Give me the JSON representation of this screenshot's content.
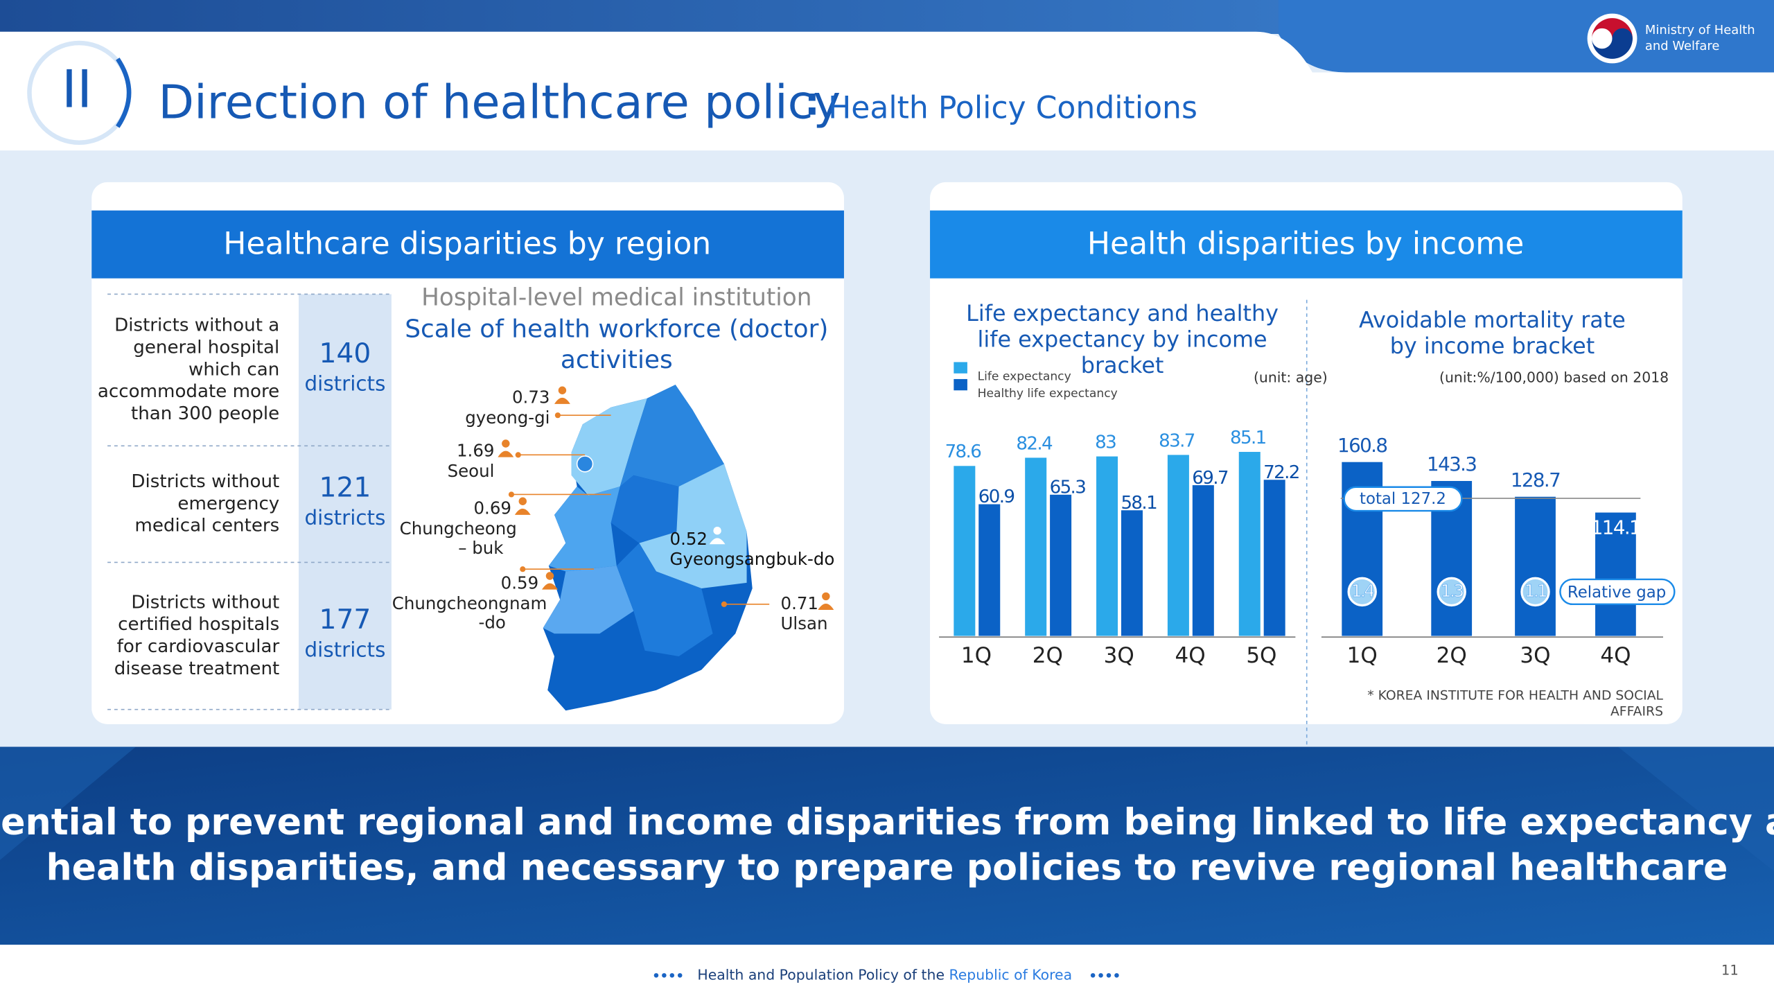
{
  "header": {
    "numeral": "II",
    "title": "Direction of healthcare policy",
    "separator": ":",
    "subtitle": "Health Policy Conditions",
    "logo": [
      "Ministry of Health",
      "and Welfare"
    ]
  },
  "region_panel": {
    "title": "Healthcare disparities by region",
    "rows": [
      {
        "label": [
          "Districts without a",
          "general hospital",
          "which can",
          "accommodate more",
          "than 300 people"
        ],
        "value": 140,
        "unit": "districts"
      },
      {
        "label": [
          "Districts without",
          "emergency",
          "medical centers"
        ],
        "value": 121,
        "unit": "districts"
      },
      {
        "label": [
          "Districts without",
          "certified hospitals",
          "for cardiovascular",
          "disease treatment"
        ],
        "value": 177,
        "unit": "districts"
      }
    ],
    "map": {
      "caption": "Hospital-level medical institution",
      "title": [
        "Scale of health workforce (doctor)",
        "activities"
      ],
      "regions": [
        {
          "name": [
            "gyeong-gi"
          ],
          "value": 0.73
        },
        {
          "name": [
            "Seoul"
          ],
          "value": 1.69
        },
        {
          "name": [
            "Chungcheong",
            "– buk"
          ],
          "value": 0.69
        },
        {
          "name": [
            "Chungcheongnam",
            "-do"
          ],
          "value": 0.59
        },
        {
          "name": [
            "Gyeongsangbuk-do"
          ],
          "value": 0.52
        },
        {
          "name": [
            "Ulsan"
          ],
          "value": 0.71
        }
      ]
    }
  },
  "income_panel": {
    "title": "Health disparities by income",
    "source": [
      "* KOREA INSTITUTE FOR HEALTH AND SOCIAL",
      "AFFAIRS"
    ]
  },
  "chart_data": [
    {
      "type": "bar",
      "title": [
        "Life expectancy and healthy",
        "life expectancy by income",
        "bracket"
      ],
      "unit": "(unit: age)",
      "categories": [
        "1Q",
        "2Q",
        "3Q",
        "4Q",
        "5Q"
      ],
      "series": [
        {
          "name": "Life expectancy",
          "color": "#2ba9ea",
          "values": [
            78.6,
            82.4,
            83,
            83.7,
            85.1
          ]
        },
        {
          "name": "Healthy life expectancy",
          "color": "#0b62c6",
          "values": [
            60.9,
            65.3,
            58.1,
            69.7,
            72.2
          ]
        }
      ],
      "ylim": [
        0,
        90
      ]
    },
    {
      "type": "bar",
      "title": [
        "Avoidable mortality rate",
        "by income bracket"
      ],
      "unit": "(unit:%/100,000) based on 2018",
      "categories": [
        "1Q",
        "2Q",
        "3Q",
        "4Q"
      ],
      "color": "#0b62c6",
      "values": [
        160.8,
        143.3,
        128.7,
        114.1
      ],
      "reference": {
        "value": 127.2,
        "label": "total 127.2"
      },
      "gaps": {
        "name": "Relative gap",
        "values": [
          1.4,
          1.3,
          1.1
        ]
      },
      "ylim": [
        0,
        180
      ]
    }
  ],
  "banner": [
    "Essential to prevent regional and income disparities from being linked to life expectancy and",
    "health disparities, and necessary to prepare policies to revive regional healthcare"
  ],
  "footer": {
    "text": "Health and Population Policy of the",
    "highlight": "Republic of Korea",
    "page": 11
  }
}
